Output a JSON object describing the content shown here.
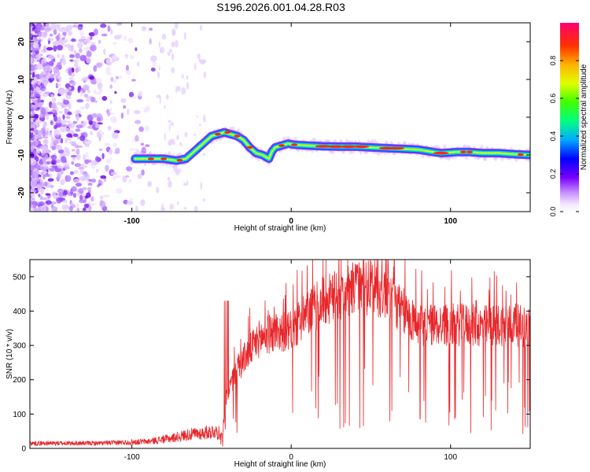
{
  "figure": {
    "title": "S196.2026.001.04.28.R03"
  },
  "chart_data": [
    {
      "type": "heatmap",
      "name": "spectrogram",
      "xlabel": "Height of straight line (km)",
      "ylabel": "Frequency (Hz)",
      "xlim": [
        -164,
        150
      ],
      "ylim": [
        -25,
        25
      ],
      "xticks": [
        -100,
        0,
        100
      ],
      "yticks": [
        -20,
        -10,
        0,
        10,
        20
      ],
      "colorbar": {
        "label": "Normalized spectral amplitude",
        "range": [
          0,
          1
        ],
        "ticks": [
          "0.0",
          "0.2",
          "0.4",
          "0.6",
          "0.8"
        ]
      },
      "ridge": {
        "description_units": "x in km, y in Hz",
        "x": [
          -98,
          -90,
          -80,
          -72,
          -66,
          -62,
          -58,
          -54,
          -50,
          -46,
          -42,
          -38,
          -34,
          -30,
          -26,
          -22,
          -18,
          -16,
          -14,
          -12,
          -10,
          -6,
          -2,
          2,
          10,
          20,
          30,
          40,
          50,
          60,
          70,
          80,
          86,
          90,
          94,
          98,
          104,
          112,
          120,
          130,
          140,
          150
        ],
        "y": [
          -11,
          -11,
          -11,
          -11.5,
          -11,
          -9.5,
          -8,
          -6.5,
          -5,
          -4.5,
          -4,
          -4.5,
          -5,
          -6,
          -8,
          -9.5,
          -10,
          -10.5,
          -11,
          -9,
          -8,
          -7.5,
          -7,
          -7.3,
          -7.5,
          -7.7,
          -7.8,
          -7.8,
          -8,
          -8.2,
          -8.4,
          -8.6,
          -9,
          -9.3,
          -9.5,
          -9.4,
          -9.2,
          -9.2,
          -9.5,
          -9.5,
          -9.8,
          -10
        ]
      }
    },
    {
      "type": "line",
      "name": "snr",
      "xlabel": "Height of straight line (km)",
      "ylabel": "SNR (10 * v/v)",
      "xlim": [
        -164,
        150
      ],
      "ylim": [
        0,
        550
      ],
      "xticks": [
        -100,
        0,
        100
      ],
      "yticks": [
        0,
        100,
        200,
        300,
        400,
        500
      ],
      "color": "#e8262a",
      "envelope": {
        "x": [
          -164,
          -120,
          -90,
          -75,
          -65,
          -55,
          -48,
          -43,
          -40,
          -35,
          -30,
          -25,
          -20,
          -10,
          0,
          10,
          20,
          30,
          40,
          50,
          60,
          70,
          80,
          90,
          100,
          110,
          120,
          130,
          140,
          150
        ],
        "y": [
          15,
          15,
          20,
          30,
          40,
          45,
          50,
          40,
          160,
          220,
          260,
          290,
          320,
          340,
          340,
          390,
          430,
          440,
          460,
          470,
          450,
          400,
          360,
          360,
          360,
          360,
          355,
          360,
          360,
          350
        ]
      }
    }
  ]
}
